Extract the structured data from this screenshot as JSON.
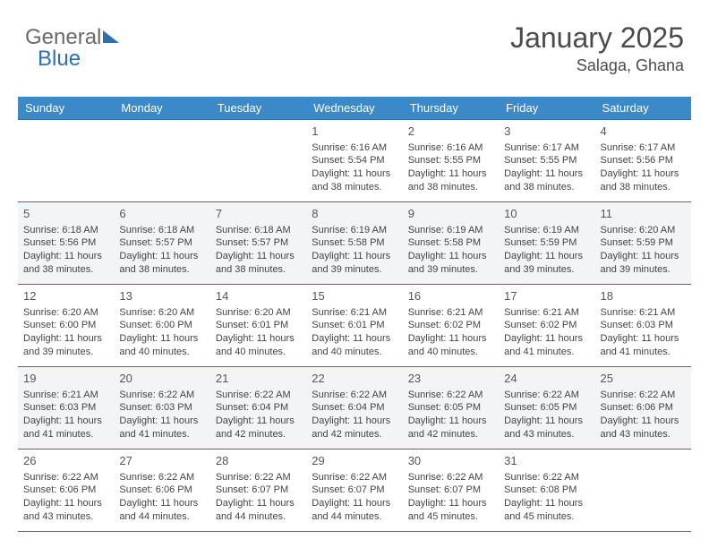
{
  "logo": {
    "part1": "General",
    "part2": "Blue"
  },
  "header": {
    "month_title": "January 2025",
    "location": "Salaga, Ghana"
  },
  "colors": {
    "header_bg": "#3b89c9",
    "border": "#3b6fa0",
    "alt_row_bg": "#f3f4f5",
    "text": "#444444",
    "title_text": "#4a4a4a"
  },
  "daynames": [
    "Sunday",
    "Monday",
    "Tuesday",
    "Wednesday",
    "Thursday",
    "Friday",
    "Saturday"
  ],
  "weeks": [
    {
      "alt": false,
      "days": [
        null,
        null,
        null,
        {
          "n": "1",
          "sunrise": "6:16 AM",
          "sunset": "5:54 PM",
          "day_h": "11",
          "day_m": "38"
        },
        {
          "n": "2",
          "sunrise": "6:16 AM",
          "sunset": "5:55 PM",
          "day_h": "11",
          "day_m": "38"
        },
        {
          "n": "3",
          "sunrise": "6:17 AM",
          "sunset": "5:55 PM",
          "day_h": "11",
          "day_m": "38"
        },
        {
          "n": "4",
          "sunrise": "6:17 AM",
          "sunset": "5:56 PM",
          "day_h": "11",
          "day_m": "38"
        }
      ]
    },
    {
      "alt": true,
      "days": [
        {
          "n": "5",
          "sunrise": "6:18 AM",
          "sunset": "5:56 PM",
          "day_h": "11",
          "day_m": "38"
        },
        {
          "n": "6",
          "sunrise": "6:18 AM",
          "sunset": "5:57 PM",
          "day_h": "11",
          "day_m": "38"
        },
        {
          "n": "7",
          "sunrise": "6:18 AM",
          "sunset": "5:57 PM",
          "day_h": "11",
          "day_m": "38"
        },
        {
          "n": "8",
          "sunrise": "6:19 AM",
          "sunset": "5:58 PM",
          "day_h": "11",
          "day_m": "39"
        },
        {
          "n": "9",
          "sunrise": "6:19 AM",
          "sunset": "5:58 PM",
          "day_h": "11",
          "day_m": "39"
        },
        {
          "n": "10",
          "sunrise": "6:19 AM",
          "sunset": "5:59 PM",
          "day_h": "11",
          "day_m": "39"
        },
        {
          "n": "11",
          "sunrise": "6:20 AM",
          "sunset": "5:59 PM",
          "day_h": "11",
          "day_m": "39"
        }
      ]
    },
    {
      "alt": false,
      "days": [
        {
          "n": "12",
          "sunrise": "6:20 AM",
          "sunset": "6:00 PM",
          "day_h": "11",
          "day_m": "39"
        },
        {
          "n": "13",
          "sunrise": "6:20 AM",
          "sunset": "6:00 PM",
          "day_h": "11",
          "day_m": "40"
        },
        {
          "n": "14",
          "sunrise": "6:20 AM",
          "sunset": "6:01 PM",
          "day_h": "11",
          "day_m": "40"
        },
        {
          "n": "15",
          "sunrise": "6:21 AM",
          "sunset": "6:01 PM",
          "day_h": "11",
          "day_m": "40"
        },
        {
          "n": "16",
          "sunrise": "6:21 AM",
          "sunset": "6:02 PM",
          "day_h": "11",
          "day_m": "40"
        },
        {
          "n": "17",
          "sunrise": "6:21 AM",
          "sunset": "6:02 PM",
          "day_h": "11",
          "day_m": "41"
        },
        {
          "n": "18",
          "sunrise": "6:21 AM",
          "sunset": "6:03 PM",
          "day_h": "11",
          "day_m": "41"
        }
      ]
    },
    {
      "alt": true,
      "days": [
        {
          "n": "19",
          "sunrise": "6:21 AM",
          "sunset": "6:03 PM",
          "day_h": "11",
          "day_m": "41"
        },
        {
          "n": "20",
          "sunrise": "6:22 AM",
          "sunset": "6:03 PM",
          "day_h": "11",
          "day_m": "41"
        },
        {
          "n": "21",
          "sunrise": "6:22 AM",
          "sunset": "6:04 PM",
          "day_h": "11",
          "day_m": "42"
        },
        {
          "n": "22",
          "sunrise": "6:22 AM",
          "sunset": "6:04 PM",
          "day_h": "11",
          "day_m": "42"
        },
        {
          "n": "23",
          "sunrise": "6:22 AM",
          "sunset": "6:05 PM",
          "day_h": "11",
          "day_m": "42"
        },
        {
          "n": "24",
          "sunrise": "6:22 AM",
          "sunset": "6:05 PM",
          "day_h": "11",
          "day_m": "43"
        },
        {
          "n": "25",
          "sunrise": "6:22 AM",
          "sunset": "6:06 PM",
          "day_h": "11",
          "day_m": "43"
        }
      ]
    },
    {
      "alt": false,
      "days": [
        {
          "n": "26",
          "sunrise": "6:22 AM",
          "sunset": "6:06 PM",
          "day_h": "11",
          "day_m": "43"
        },
        {
          "n": "27",
          "sunrise": "6:22 AM",
          "sunset": "6:06 PM",
          "day_h": "11",
          "day_m": "44"
        },
        {
          "n": "28",
          "sunrise": "6:22 AM",
          "sunset": "6:07 PM",
          "day_h": "11",
          "day_m": "44"
        },
        {
          "n": "29",
          "sunrise": "6:22 AM",
          "sunset": "6:07 PM",
          "day_h": "11",
          "day_m": "44"
        },
        {
          "n": "30",
          "sunrise": "6:22 AM",
          "sunset": "6:07 PM",
          "day_h": "11",
          "day_m": "45"
        },
        {
          "n": "31",
          "sunrise": "6:22 AM",
          "sunset": "6:08 PM",
          "day_h": "11",
          "day_m": "45"
        },
        null
      ]
    }
  ],
  "labels": {
    "sunrise_prefix": "Sunrise: ",
    "sunset_prefix": "Sunset: ",
    "daylight_prefix": "Daylight: ",
    "hours_word": " hours and ",
    "minutes_word": " minutes."
  }
}
